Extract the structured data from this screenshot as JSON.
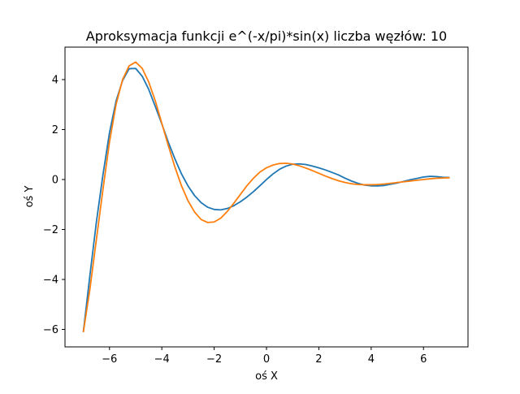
{
  "chart_data": {
    "type": "line",
    "title": "Aproksymacja funkcji e^(-x/pi)*sin(x) liczba węzłów: 10",
    "xlabel": "oś X",
    "ylabel": "oś Y",
    "xlim": [
      -7.7,
      7.7
    ],
    "ylim": [
      -6.7,
      5.3
    ],
    "xticks": [
      -6,
      -4,
      -2,
      0,
      2,
      4,
      6
    ],
    "yticks": [
      -6,
      -4,
      -2,
      0,
      2,
      4
    ],
    "xtick_labels": [
      "−6",
      "−4",
      "−2",
      "0",
      "2",
      "4",
      "6"
    ],
    "ytick_labels": [
      "−6",
      "−4",
      "−2",
      "0",
      "2",
      "4"
    ],
    "grid": false,
    "series": [
      {
        "color": "#1f77b4",
        "x": [
          -7.0,
          -6.75,
          -6.5,
          -6.25,
          -6.0,
          -5.75,
          -5.5,
          -5.25,
          -5.0,
          -4.75,
          -4.5,
          -4.25,
          -4.0,
          -3.75,
          -3.5,
          -3.25,
          -3.0,
          -2.75,
          -2.5,
          -2.25,
          -2.0,
          -1.75,
          -1.5,
          -1.25,
          -1.0,
          -0.75,
          -0.5,
          -0.25,
          0.0,
          0.25,
          0.5,
          0.75,
          1.0,
          1.25,
          1.5,
          1.75,
          2.0,
          2.25,
          2.5,
          2.75,
          3.0,
          3.25,
          3.5,
          3.75,
          4.0,
          4.25,
          4.5,
          4.75,
          5.0,
          5.25,
          5.5,
          5.75,
          6.0,
          6.25,
          6.5,
          6.75,
          7.0
        ],
        "y": [
          -6.111,
          -3.852,
          -1.698,
          0.183,
          1.871,
          3.136,
          3.96,
          4.436,
          4.446,
          4.136,
          3.608,
          2.925,
          2.225,
          1.488,
          0.825,
          0.227,
          -0.256,
          -0.641,
          -0.925,
          -1.108,
          -1.198,
          -1.216,
          -1.161,
          -1.05,
          -0.892,
          -0.703,
          -0.487,
          -0.247,
          0.0,
          0.225,
          0.41,
          0.538,
          0.611,
          0.626,
          0.601,
          0.54,
          0.466,
          0.383,
          0.286,
          0.183,
          0.054,
          -0.062,
          -0.154,
          -0.224,
          -0.254,
          -0.255,
          -0.238,
          -0.189,
          -0.139,
          -0.072,
          -0.008,
          0.045,
          0.099,
          0.128,
          0.118,
          0.089,
          0.08
        ]
      },
      {
        "color": "#ff7f0e",
        "x": [
          -7.0,
          -6.75,
          -6.5,
          -6.25,
          -6.0,
          -5.75,
          -5.5,
          -5.25,
          -5.0,
          -4.75,
          -4.5,
          -4.25,
          -4.0,
          -3.75,
          -3.5,
          -3.25,
          -3.0,
          -2.75,
          -2.5,
          -2.25,
          -2.0,
          -1.75,
          -1.5,
          -1.25,
          -1.0,
          -0.75,
          -0.5,
          -0.25,
          0.0,
          0.25,
          0.5,
          0.75,
          1.0,
          1.25,
          1.5,
          1.75,
          2.0,
          2.25,
          2.5,
          2.75,
          3.0,
          3.25,
          3.5,
          3.75,
          4.0,
          4.25,
          4.5,
          4.75,
          5.0,
          5.25,
          5.5,
          5.75,
          6.0,
          6.25,
          6.5,
          6.75,
          7.0
        ],
        "y": [
          -6.111,
          -4.4,
          -2.4,
          -0.4,
          1.5,
          3.0,
          4.0,
          4.55,
          4.7,
          4.45,
          3.9,
          3.15,
          2.25,
          1.35,
          0.5,
          -0.25,
          -0.85,
          -1.3,
          -1.6,
          -1.72,
          -1.7,
          -1.55,
          -1.28,
          -0.95,
          -0.6,
          -0.25,
          0.05,
          0.3,
          0.47,
          0.58,
          0.64,
          0.65,
          0.62,
          0.55,
          0.46,
          0.36,
          0.25,
          0.14,
          0.04,
          -0.05,
          -0.12,
          -0.17,
          -0.2,
          -0.21,
          -0.21,
          -0.2,
          -0.18,
          -0.15,
          -0.12,
          -0.09,
          -0.06,
          -0.03,
          0.0,
          0.03,
          0.05,
          0.06,
          0.07
        ]
      }
    ]
  }
}
